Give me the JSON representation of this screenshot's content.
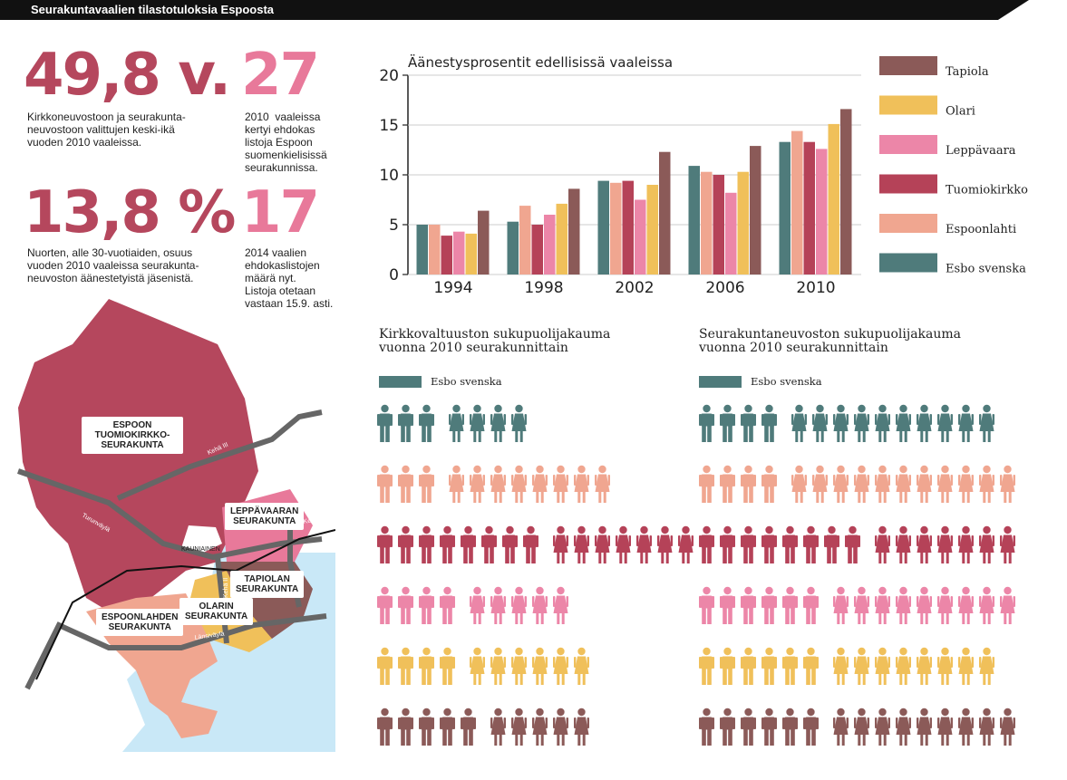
{
  "header": {
    "title": "Seurakuntavaalien tilastotuloksia Espoosta"
  },
  "stats": [
    {
      "value": "49,8 v.",
      "text": "Kirkkoneuvostoon ja seurakunta-\nneuvostoon valittujen keski-ikä\nvuoden 2010 vaaleissa."
    },
    {
      "value": "27",
      "text": "2010  vaaleissa\nkertyi ehdokas\nlistoja Espoon\nsuomenkielisissä\nseurakunnissa."
    },
    {
      "value": "13,8 %",
      "text": "Nuorten, alle 30-vuotiaiden, osuus\nvuoden 2010 vaaleissa seurakunta-\nneuvoston äänestetyistä jäsenistä."
    },
    {
      "value": "17",
      "text": "2014 vaalien\nehdokaslistojen\nmäärä nyt.\nListoja otetaan\nvastaan 15.9. asti."
    }
  ],
  "colors": {
    "accent_dark": "#b5475d",
    "accent_pink": "#e8799a",
    "Tapiola": "#8b5a58",
    "Olari": "#f0c05a",
    "Leppävaara": "#ec86a8",
    "Tuomiokirkko": "#b54258",
    "Espoonlahti": "#f0a690",
    "Esbo svenska": "#4f7b7b",
    "sea": "#c9e8f7",
    "road": "#666666"
  },
  "chart_data": {
    "type": "bar",
    "title": "Äänestysprosentit edellisissä vaaleissa",
    "categories": [
      "1994",
      "1998",
      "2002",
      "2006",
      "2010"
    ],
    "ylim": [
      0,
      20
    ],
    "yticks": [
      "0",
      "5",
      "10",
      "15",
      "20"
    ],
    "legend_position": "right",
    "series": [
      {
        "name": "Esbo svenska",
        "values": [
          5.0,
          5.3,
          9.4,
          10.9,
          13.3
        ]
      },
      {
        "name": "Espoonlahti",
        "values": [
          5.0,
          6.9,
          9.2,
          10.3,
          14.4
        ]
      },
      {
        "name": "Tuomiokirkko",
        "values": [
          3.9,
          5.0,
          9.4,
          10.0,
          13.3
        ]
      },
      {
        "name": "Leppävaara",
        "values": [
          4.3,
          6.0,
          7.5,
          8.2,
          12.6
        ]
      },
      {
        "name": "Olari",
        "values": [
          4.1,
          7.1,
          9.0,
          10.3,
          15.1
        ]
      },
      {
        "name": "Tapiola",
        "values": [
          6.4,
          8.6,
          12.3,
          12.9,
          16.6
        ]
      }
    ],
    "legend_order": [
      "Tapiola",
      "Olari",
      "Leppävaara",
      "Tuomiokirkko",
      "Espoonlahti",
      "Esbo svenska"
    ]
  },
  "people": {
    "left": {
      "title": "Kirkkovaltuuston sukupuolijakauma\nvuonna 2010 seurakunnittain",
      "legend": "Esbo svenska",
      "rows": [
        {
          "parish": "Esbo svenska",
          "men": 3,
          "women": 4
        },
        {
          "parish": "Espoonlahti",
          "men": 3,
          "women": 8
        },
        {
          "parish": "Tuomiokirkko",
          "men": 8,
          "women": 7
        },
        {
          "parish": "Leppävaara",
          "men": 4,
          "women": 5
        },
        {
          "parish": "Olari",
          "men": 4,
          "women": 6
        },
        {
          "parish": "Tapiola",
          "men": 5,
          "women": 5
        }
      ]
    },
    "right": {
      "title": "Seurakuntaneuvoston sukupuolijakauma\nvuonna 2010 seurakunnittain",
      "legend": "Esbo svenska",
      "rows": [
        {
          "parish": "Esbo svenska",
          "men": 4,
          "women": 10
        },
        {
          "parish": "Espoonlahti",
          "men": 4,
          "women": 11
        },
        {
          "parish": "Tuomiokirkko",
          "men": 8,
          "women": 7
        },
        {
          "parish": "Leppävaara",
          "men": 6,
          "women": 9
        },
        {
          "parish": "Olari",
          "men": 6,
          "women": 8
        },
        {
          "parish": "Tapiola",
          "men": 6,
          "women": 9
        }
      ]
    }
  },
  "map": {
    "labels": {
      "tuomiokirkko": "ESPOON\nTUOMIOKIRKKO-\nSEURAKUNTA",
      "leppavaara": "LEPPÄVAARAN\nSEURAKUNTA",
      "tapiola": "TAPIOLAN\nSEURAKUNTA",
      "olari": "OLARIN\nSEURAKUNTA",
      "espoonlahti": "ESPOONLAHDEN\nSEURAKUNTA",
      "kauniainen": "KAUNIAINEN"
    },
    "roads": {
      "kehaIII": "Kehä III",
      "turunvayla": "Turunväylä",
      "kehaI": "Kehä I",
      "kehaII": "Kehä II",
      "lansivayla": "Länsiväylä"
    }
  }
}
